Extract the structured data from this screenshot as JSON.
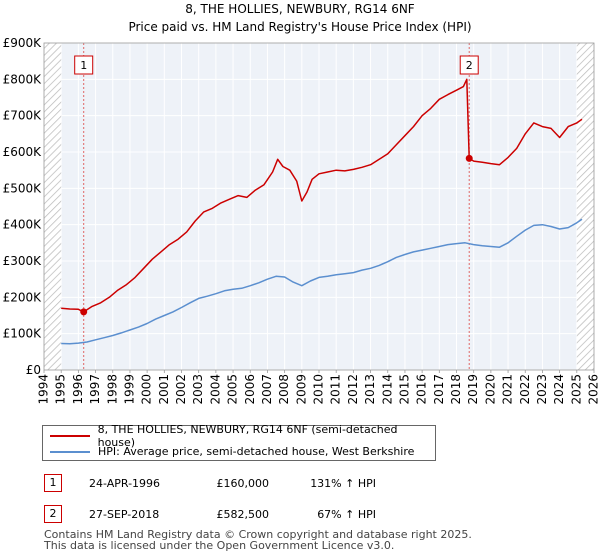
{
  "chart_data": {
    "type": "line",
    "title": "8, THE HOLLIES, NEWBURY, RG14 6NF",
    "subtitle": "Price paid vs. HM Land Registry's House Price Index (HPI)",
    "xlabel": "",
    "ylabel": "",
    "xlim": [
      1994.0,
      2026.0
    ],
    "ylim": [
      0,
      900000
    ],
    "grid": true,
    "x_ticks": [
      1994,
      1995,
      1996,
      1997,
      1998,
      1999,
      2000,
      2001,
      2002,
      2003,
      2004,
      2005,
      2006,
      2007,
      2008,
      2009,
      2010,
      2011,
      2012,
      2013,
      2014,
      2015,
      2016,
      2017,
      2018,
      2019,
      2020,
      2021,
      2022,
      2023,
      2024,
      2025,
      2026
    ],
    "y_ticks": [
      {
        "value": 0,
        "label": "£0"
      },
      {
        "value": 100000,
        "label": "£100K"
      },
      {
        "value": 200000,
        "label": "£200K"
      },
      {
        "value": 300000,
        "label": "£300K"
      },
      {
        "value": 400000,
        "label": "£400K"
      },
      {
        "value": 500000,
        "label": "£500K"
      },
      {
        "value": 600000,
        "label": "£600K"
      },
      {
        "value": 700000,
        "label": "£700K"
      },
      {
        "value": 800000,
        "label": "£800K"
      },
      {
        "value": 900000,
        "label": "£900K"
      }
    ],
    "hatched_regions": [
      [
        1994.0,
        1995.0
      ],
      [
        2025.0,
        2026.0
      ]
    ],
    "series": [
      {
        "name": "8, THE HOLLIES, NEWBURY, RG14 6NF (semi-detached house)",
        "color": "#cc0000",
        "x": [
          1995.0,
          1995.5,
          1996.0,
          1996.31,
          1996.8,
          1997.3,
          1997.8,
          1998.3,
          1998.8,
          1999.3,
          1999.8,
          2000.3,
          2000.8,
          2001.3,
          2001.8,
          2002.3,
          2002.8,
          2003.3,
          2003.8,
          2004.3,
          2004.8,
          2005.3,
          2005.8,
          2006.3,
          2006.8,
          2007.3,
          2007.6,
          2007.9,
          2008.3,
          2008.7,
          2009.0,
          2009.3,
          2009.6,
          2010.0,
          2010.5,
          2011.0,
          2011.5,
          2012.0,
          2012.5,
          2013.0,
          2013.5,
          2014.0,
          2014.5,
          2015.0,
          2015.5,
          2016.0,
          2016.5,
          2017.0,
          2017.5,
          2018.0,
          2018.4,
          2018.6,
          2018.74,
          2019.0,
          2019.5,
          2020.0,
          2020.5,
          2021.0,
          2021.5,
          2022.0,
          2022.5,
          2023.0,
          2023.5,
          2024.0,
          2024.5,
          2025.0,
          2025.3
        ],
        "values": [
          170000,
          168000,
          167000,
          160000,
          175000,
          185000,
          200000,
          220000,
          235000,
          255000,
          280000,
          305000,
          325000,
          345000,
          360000,
          380000,
          410000,
          435000,
          445000,
          460000,
          470000,
          480000,
          475000,
          495000,
          510000,
          545000,
          580000,
          560000,
          550000,
          520000,
          465000,
          490000,
          525000,
          540000,
          545000,
          550000,
          548000,
          552000,
          558000,
          565000,
          580000,
          595000,
          620000,
          645000,
          670000,
          700000,
          720000,
          745000,
          758000,
          770000,
          780000,
          800000,
          582500,
          575000,
          572000,
          568000,
          565000,
          585000,
          610000,
          650000,
          680000,
          670000,
          665000,
          640000,
          670000,
          680000,
          690000
        ]
      },
      {
        "name": "HPI: Average price, semi-detached house, West Berkshire",
        "color": "#5b8fcf",
        "x": [
          1995.0,
          1995.5,
          1996.0,
          1996.5,
          1997.0,
          1997.5,
          1998.0,
          1998.5,
          1999.0,
          1999.5,
          2000.0,
          2000.5,
          2001.0,
          2001.5,
          2002.0,
          2002.5,
          2003.0,
          2003.5,
          2004.0,
          2004.5,
          2005.0,
          2005.5,
          2006.0,
          2006.5,
          2007.0,
          2007.5,
          2008.0,
          2008.5,
          2009.0,
          2009.5,
          2010.0,
          2010.5,
          2011.0,
          2011.5,
          2012.0,
          2012.5,
          2013.0,
          2013.5,
          2014.0,
          2014.5,
          2015.0,
          2015.5,
          2016.0,
          2016.5,
          2017.0,
          2017.5,
          2018.0,
          2018.5,
          2019.0,
          2019.5,
          2020.0,
          2020.5,
          2021.0,
          2021.5,
          2022.0,
          2022.5,
          2023.0,
          2023.5,
          2024.0,
          2024.5,
          2025.0,
          2025.3
        ],
        "values": [
          73000,
          72000,
          74000,
          77000,
          83000,
          89000,
          95000,
          102000,
          110000,
          118000,
          128000,
          140000,
          150000,
          160000,
          172000,
          185000,
          197000,
          203000,
          210000,
          218000,
          222000,
          225000,
          232000,
          240000,
          250000,
          258000,
          256000,
          242000,
          232000,
          245000,
          255000,
          258000,
          262000,
          265000,
          268000,
          275000,
          280000,
          288000,
          298000,
          310000,
          318000,
          325000,
          330000,
          335000,
          340000,
          345000,
          348000,
          350000,
          345000,
          342000,
          340000,
          338000,
          350000,
          368000,
          385000,
          398000,
          400000,
          395000,
          388000,
          392000,
          405000,
          415000
        ]
      }
    ],
    "sales": [
      {
        "label": "1",
        "x": 1996.31,
        "y": 160000
      },
      {
        "label": "2",
        "x": 2018.74,
        "y": 582500
      }
    ]
  },
  "legend": {
    "property_label": "8, THE HOLLIES, NEWBURY, RG14 6NF (semi-detached house)",
    "hpi_label": "HPI: Average price, semi-detached house, West Berkshire"
  },
  "transactions": [
    {
      "num": "1",
      "date": "24-APR-1996",
      "price": "£160,000",
      "hpi": "131% ↑ HPI"
    },
    {
      "num": "2",
      "date": "27-SEP-2018",
      "price": "£582,500",
      "hpi": "67% ↑ HPI"
    }
  ],
  "footer": {
    "line1": "Contains HM Land Registry data © Crown copyright and database right 2025.",
    "line2": "This data is licensed under the Open Government Licence v3.0."
  }
}
